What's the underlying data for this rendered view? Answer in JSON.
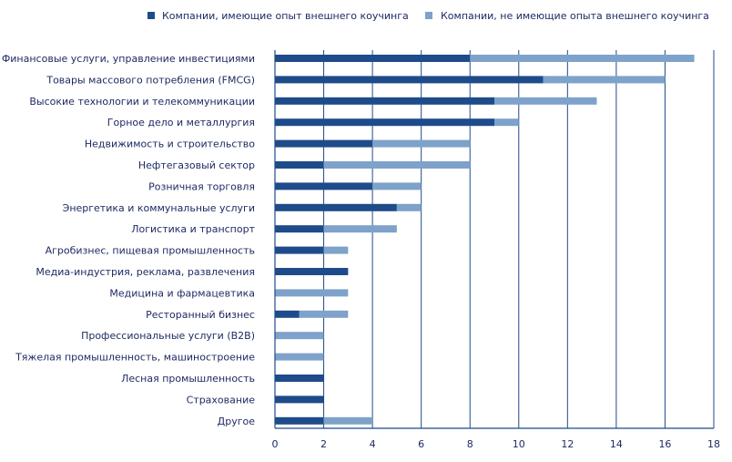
{
  "chart_data": {
    "type": "bar",
    "orientation": "horizontal",
    "stacked": true,
    "categories": [
      "Финансовые услуги, управление инвестициями",
      "Товары массового потребления (FMCG)",
      "Высокие технологии и телекоммуникации",
      "Горное дело и металлургия",
      "Недвижимость и строительство",
      "Нефтегазовый сектор",
      "Розничная торговля",
      "Энергетика и коммунальные услуги",
      "Логистика и транспорт",
      "Агробизнес, пищевая промышленность",
      "Медиа-индустрия, реклама, развлечения",
      "Медицина и фармацевтика",
      "Ресторанный бизнес",
      "Профессиональные услуги (B2B)",
      "Тяжелая промышленность, машиностроение",
      "Лесная промышленность",
      "Страхование",
      "Другое"
    ],
    "series": [
      {
        "name": "Компании, имеющие опыт внешнего коучинга",
        "color": "#1e4b8a",
        "values": [
          8,
          11,
          9,
          9,
          4,
          2,
          4,
          5,
          2,
          2,
          3,
          0,
          1,
          0,
          0,
          2,
          2,
          2
        ]
      },
      {
        "name": "Компании, не имеющие опыта внешнего коучинга",
        "color": "#7ea2c9",
        "values": [
          9.2,
          5,
          4.2,
          1,
          4,
          6,
          2,
          1,
          3,
          1,
          0,
          3,
          2,
          2,
          2,
          0,
          0,
          2
        ]
      }
    ],
    "xlim": [
      0,
      18
    ],
    "xticks": [
      "0",
      "2",
      "4",
      "6",
      "8",
      "10",
      "12",
      "14",
      "16",
      "18"
    ],
    "xlabel": "",
    "ylabel": "",
    "grid": "vertical",
    "legend_position": "top"
  }
}
